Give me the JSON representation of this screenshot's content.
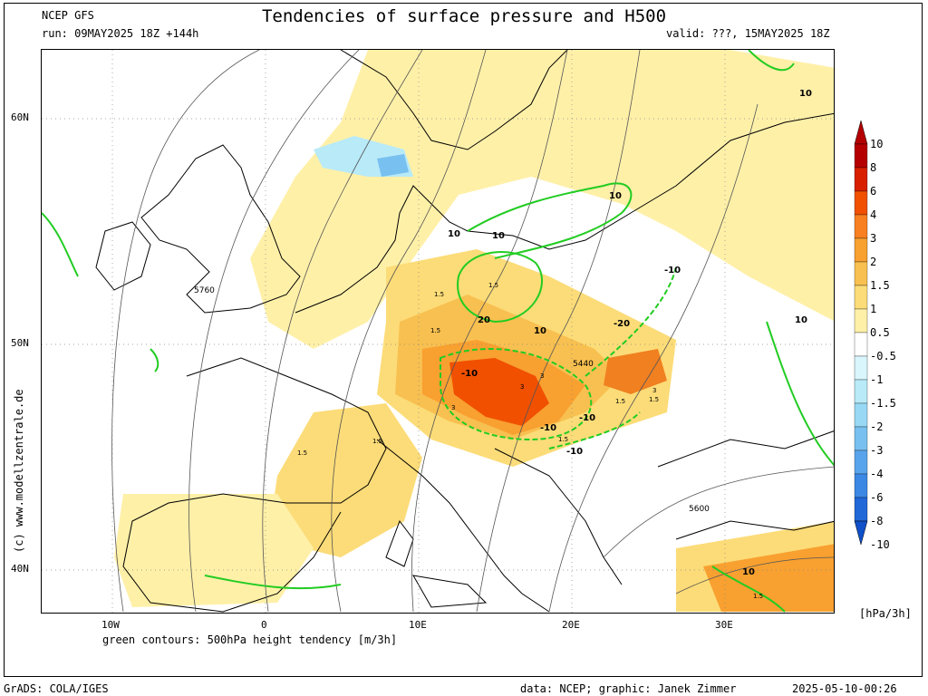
{
  "header": {
    "source": "NCEP GFS",
    "run": "run: 09MAY2025 18Z +144h",
    "title": "Tendencies of surface pressure and H500",
    "valid": "valid: ???, 15MAY2025 18Z"
  },
  "map": {
    "lat_ticks": [
      "60N",
      "50N",
      "40N"
    ],
    "lon_ticks": [
      "10W",
      "0",
      "10E",
      "20E",
      "30E"
    ],
    "legend_note": "green contours: 500hPa height tendency [m/3h]",
    "watermark": "(c) www.modellzentrale.de",
    "height_labels": [
      "5760",
      "5600",
      "5440"
    ],
    "green_contour_labels": [
      "10",
      "10",
      "10",
      "10",
      "10",
      "10",
      "20",
      "-10",
      "-10",
      "-20",
      "-10",
      "-10",
      "-10",
      "10"
    ],
    "shading_labels": [
      "1.5",
      "1.5",
      "1.5",
      "1.5",
      "3",
      "3",
      "3",
      "1.5",
      "1.5",
      "1.5",
      "1.5",
      "1.5",
      "3"
    ],
    "colors": {
      "land_outline": "#000000",
      "height_contour": "#555555",
      "tendency_contour": "#22cc22"
    }
  },
  "colorbar": {
    "unit": "[hPa/3h]",
    "labels": [
      "10",
      "8",
      "6",
      "4",
      "3",
      "2",
      "1.5",
      "1",
      "0.5",
      "-0.5",
      "-1",
      "-1.5",
      "-2",
      "-3",
      "-4",
      "-6",
      "-8",
      "-10"
    ],
    "colors": [
      "#b40000",
      "#d82000",
      "#f05000",
      "#f88020",
      "#f8a030",
      "#f8c050",
      "#fcdc78",
      "#fff0a8",
      "#ffffff",
      "#d8f6fc",
      "#b8eaf8",
      "#98d8f4",
      "#78c0f0",
      "#58a4ec",
      "#3a88e4",
      "#2068d8",
      "#1050c8"
    ]
  },
  "footer": {
    "software": "GrADS: COLA/IGES",
    "credit": "data: NCEP; graphic: Janek Zimmer",
    "timestamp": "2025-05-10-00:26"
  }
}
